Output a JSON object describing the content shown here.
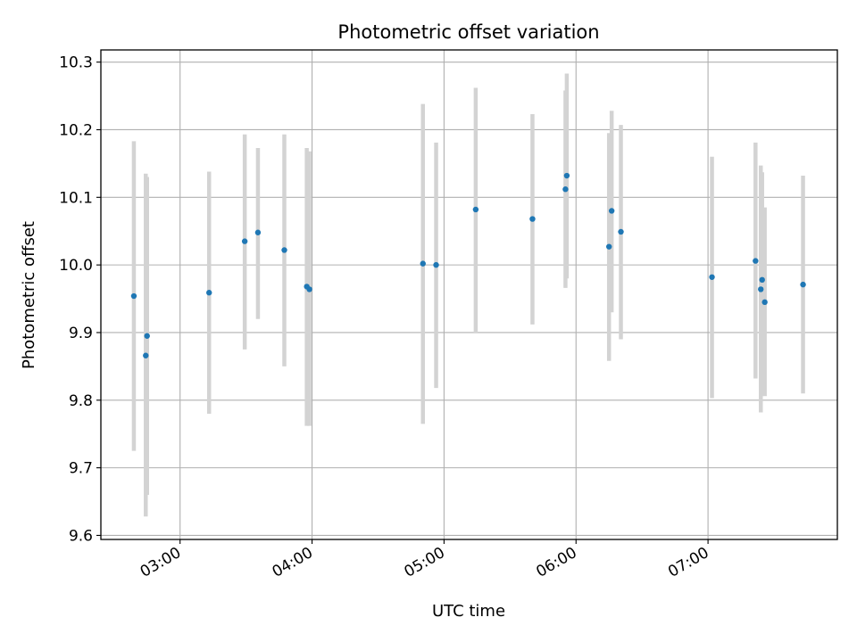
{
  "chart_data": {
    "type": "scatter",
    "title": "Photometric offset variation",
    "xlabel": "UTC time",
    "ylabel": "Photometric offset",
    "x_unit": "hours (UTC)",
    "xlim": [
      2.4,
      7.98
    ],
    "ylim": [
      9.594,
      10.318
    ],
    "grid": true,
    "x_ticks": [
      {
        "value": 3,
        "label": "03:00"
      },
      {
        "value": 4,
        "label": "04:00"
      },
      {
        "value": 5,
        "label": "05:00"
      },
      {
        "value": 6,
        "label": "06:00"
      },
      {
        "value": 7,
        "label": "07:00"
      }
    ],
    "y_ticks": [
      {
        "value": 9.6,
        "label": "9.6"
      },
      {
        "value": 9.7,
        "label": "9.7"
      },
      {
        "value": 9.8,
        "label": "9.8"
      },
      {
        "value": 9.9,
        "label": "9.9"
      },
      {
        "value": 10.0,
        "label": "10.0"
      },
      {
        "value": 10.1,
        "label": "10.1"
      },
      {
        "value": 10.2,
        "label": "10.2"
      },
      {
        "value": 10.3,
        "label": "10.3"
      }
    ],
    "marker_color": "#1f77b4",
    "errorbar_color": "#d3d3d3",
    "series": [
      {
        "points": [
          {
            "x": 2.65,
            "y": 9.954,
            "yerr_low": 9.725,
            "yerr_high": 10.183
          },
          {
            "x": 2.74,
            "y": 9.866,
            "yerr_low": 9.628,
            "yerr_high": 10.135
          },
          {
            "x": 2.75,
            "y": 9.895,
            "yerr_low": 9.66,
            "yerr_high": 10.13
          },
          {
            "x": 3.22,
            "y": 9.959,
            "yerr_low": 9.78,
            "yerr_high": 10.138
          },
          {
            "x": 3.49,
            "y": 10.035,
            "yerr_low": 9.875,
            "yerr_high": 10.193
          },
          {
            "x": 3.59,
            "y": 10.048,
            "yerr_low": 9.92,
            "yerr_high": 10.173
          },
          {
            "x": 3.79,
            "y": 10.022,
            "yerr_low": 9.85,
            "yerr_high": 10.193
          },
          {
            "x": 3.96,
            "y": 9.968,
            "yerr_low": 9.762,
            "yerr_high": 10.173
          },
          {
            "x": 3.98,
            "y": 9.964,
            "yerr_low": 9.762,
            "yerr_high": 10.168
          },
          {
            "x": 4.84,
            "y": 10.002,
            "yerr_low": 9.765,
            "yerr_high": 10.238
          },
          {
            "x": 4.94,
            "y": 10.0,
            "yerr_low": 9.818,
            "yerr_high": 10.181
          },
          {
            "x": 5.24,
            "y": 10.082,
            "yerr_low": 9.9,
            "yerr_high": 10.262
          },
          {
            "x": 5.67,
            "y": 10.068,
            "yerr_low": 9.912,
            "yerr_high": 10.223
          },
          {
            "x": 5.92,
            "y": 10.112,
            "yerr_low": 9.966,
            "yerr_high": 10.258
          },
          {
            "x": 5.93,
            "y": 10.132,
            "yerr_low": 9.98,
            "yerr_high": 10.283
          },
          {
            "x": 6.25,
            "y": 10.027,
            "yerr_low": 9.858,
            "yerr_high": 10.195
          },
          {
            "x": 6.27,
            "y": 10.08,
            "yerr_low": 9.93,
            "yerr_high": 10.228
          },
          {
            "x": 6.34,
            "y": 10.049,
            "yerr_low": 9.89,
            "yerr_high": 10.207
          },
          {
            "x": 7.03,
            "y": 9.982,
            "yerr_low": 9.803,
            "yerr_high": 10.16
          },
          {
            "x": 7.36,
            "y": 10.006,
            "yerr_low": 9.832,
            "yerr_high": 10.181
          },
          {
            "x": 7.4,
            "y": 9.964,
            "yerr_low": 9.782,
            "yerr_high": 10.147
          },
          {
            "x": 7.41,
            "y": 9.978,
            "yerr_low": 9.82,
            "yerr_high": 10.137
          },
          {
            "x": 7.43,
            "y": 9.945,
            "yerr_low": 9.806,
            "yerr_high": 10.085
          },
          {
            "x": 7.72,
            "y": 9.971,
            "yerr_low": 9.81,
            "yerr_high": 10.132
          }
        ]
      }
    ]
  }
}
